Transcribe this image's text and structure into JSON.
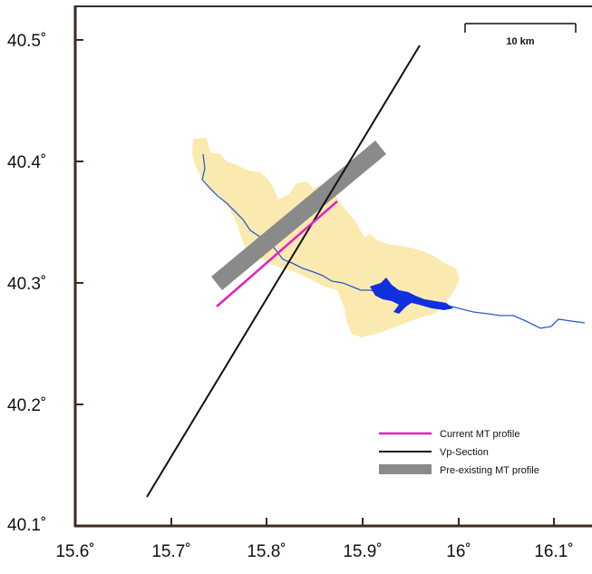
{
  "map": {
    "x_ticks": [
      "15.6˚",
      "15.7˚",
      "15.8˚",
      "15.9˚",
      "16˚",
      "16.1˚"
    ],
    "y_ticks": [
      "40.5˚",
      "40.4˚",
      "40.3˚",
      "40.2˚",
      "40.1˚"
    ],
    "scale_bar_label": "10 km",
    "legend": [
      {
        "label": "Current MT profile",
        "color": "#e020c8"
      },
      {
        "label": "Vp-Section",
        "color": "#111111"
      },
      {
        "label": "Pre-existing MT profile",
        "color": "#8a8a8a"
      }
    ],
    "basin_color": "#fbeab0",
    "river_color": "#2a5bd0",
    "lake_color": "#1030e0",
    "frame_color": "#3a2a22"
  }
}
